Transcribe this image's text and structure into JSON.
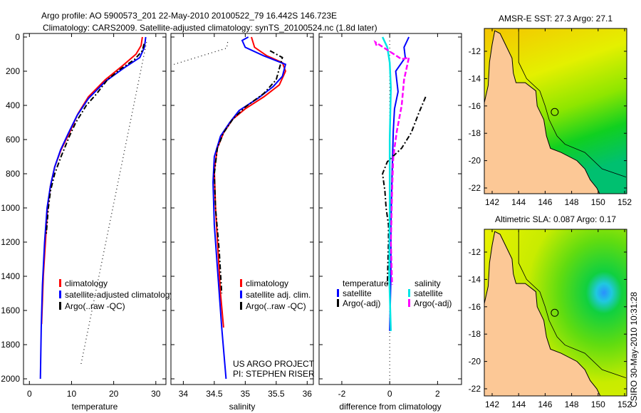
{
  "title_line1": "Argo profile: AO 5900573_201 22-May-2010 20100522_79 16.442S 146.723E",
  "title_line2": "Climatology: CARS2009. Satellite-adjusted climatology: synTS_20100524.nc (1.8d later)",
  "footer_stamp": "CSIRO 30-May-2010 10:31:28",
  "colors": {
    "climatology": "#ff0000",
    "satellite": "#0000ff",
    "argo": "#000000",
    "sal_satellite": "#00e5e5",
    "sal_argo": "#ff00ff",
    "land": "#fcc896"
  },
  "chart_data": [
    {
      "type": "line",
      "id": "temp",
      "xlabel": "temperature",
      "ylabel": "",
      "xlim": [
        -1.4,
        32.4
      ],
      "ylim": [
        2030,
        0
      ],
      "xticks": [
        0,
        10,
        20,
        30
      ],
      "yticks": [
        0,
        200,
        400,
        600,
        800,
        1000,
        1200,
        1400,
        1600,
        1800,
        2000
      ],
      "legend": [
        "climatology",
        "satellite-adjusted climatology",
        "Argo(..raw -QC)"
      ],
      "series": [
        {
          "name": "climatology",
          "style": "red",
          "points": [
            [
              26.8,
              0
            ],
            [
              26.5,
              50
            ],
            [
              25.3,
              100
            ],
            [
              22,
              170
            ],
            [
              18,
              250
            ],
            [
              14,
              350
            ],
            [
              11.5,
              450
            ],
            [
              9.5,
              560
            ],
            [
              7.5,
              660
            ],
            [
              6,
              760
            ],
            [
              5,
              870
            ],
            [
              4.3,
              1000
            ],
            [
              3.8,
              1200
            ],
            [
              3.3,
              1400
            ],
            [
              2.9,
              1680
            ]
          ]
        },
        {
          "name": "satellite-adjusted climatology",
          "style": "blue",
          "points": [
            [
              27.6,
              0
            ],
            [
              27.3,
              60
            ],
            [
              26.2,
              120
            ],
            [
              22.5,
              180
            ],
            [
              18,
              260
            ],
            [
              14,
              360
            ],
            [
              11.3,
              460
            ],
            [
              9.3,
              560
            ],
            [
              7.4,
              660
            ],
            [
              6,
              760
            ],
            [
              5,
              870
            ],
            [
              4.2,
              1000
            ],
            [
              3.6,
              1200
            ],
            [
              3.1,
              1450
            ],
            [
              2.8,
              1700
            ],
            [
              2.6,
              2000
            ]
          ]
        },
        {
          "name": "Argo(..raw -QC)",
          "style": "argo",
          "points": [
            [
              27.2,
              40
            ],
            [
              26.8,
              80
            ],
            [
              25,
              130
            ],
            [
              21.5,
              190
            ],
            [
              18.5,
              250
            ],
            [
              16,
              330
            ],
            [
              13.5,
              400
            ],
            [
              11,
              500
            ],
            [
              9.5,
              580
            ],
            [
              7.5,
              700
            ],
            [
              6,
              800
            ],
            [
              5,
              900
            ],
            [
              4.5,
              1000
            ],
            [
              4,
              1150
            ]
          ]
        },
        {
          "name": "Argo raw",
          "style": "dotted",
          "points": [
            [
              27.8,
              30
            ],
            [
              12.2,
              1920
            ]
          ]
        }
      ]
    },
    {
      "type": "line",
      "id": "sal",
      "xlabel": "salinity",
      "xlim": [
        33.8,
        36.1
      ],
      "ylim": [
        2030,
        0
      ],
      "xticks": [
        34,
        34.5,
        35,
        35.5,
        36
      ],
      "xtick_labels": [
        "34",
        "34.5",
        "35",
        "35.5",
        "36"
      ],
      "legend": [
        "climatology",
        "satellite adj. clim.",
        "Argo(..raw -QC)"
      ],
      "annotation": [
        "US ARGO PROJECT",
        "PI: STEPHEN RISER"
      ],
      "series": [
        {
          "name": "climatology",
          "style": "red",
          "points": [
            [
              35.1,
              0
            ],
            [
              35.15,
              60
            ],
            [
              35.35,
              110
            ],
            [
              35.6,
              150
            ],
            [
              35.65,
              200
            ],
            [
              35.55,
              280
            ],
            [
              35.3,
              350
            ],
            [
              35.0,
              420
            ],
            [
              34.8,
              480
            ],
            [
              34.65,
              560
            ],
            [
              34.55,
              650
            ],
            [
              34.5,
              780
            ],
            [
              34.52,
              1000
            ],
            [
              34.56,
              1250
            ],
            [
              34.6,
              1500
            ],
            [
              34.65,
              1700
            ]
          ]
        },
        {
          "name": "satellite adj. clim.",
          "style": "blue",
          "points": [
            [
              35.05,
              0
            ],
            [
              34.95,
              20
            ],
            [
              35.0,
              60
            ],
            [
              35.3,
              110
            ],
            [
              35.65,
              160
            ],
            [
              35.6,
              230
            ],
            [
              35.45,
              290
            ],
            [
              35.2,
              360
            ],
            [
              34.9,
              430
            ],
            [
              34.75,
              500
            ],
            [
              34.6,
              580
            ],
            [
              34.5,
              700
            ],
            [
              34.48,
              850
            ],
            [
              34.5,
              1100
            ],
            [
              34.56,
              1400
            ],
            [
              34.62,
              1700
            ],
            [
              34.69,
              2000
            ]
          ]
        },
        {
          "name": "Argo(..raw -QC)",
          "style": "argo",
          "points": [
            [
              35.4,
              80
            ],
            [
              35.6,
              120
            ],
            [
              35.5,
              250
            ],
            [
              35.3,
              330
            ],
            [
              35.0,
              410
            ],
            [
              34.8,
              480
            ],
            [
              34.65,
              560
            ],
            [
              34.55,
              650
            ],
            [
              34.5,
              800
            ],
            [
              34.52,
              1000
            ],
            [
              34.58,
              1250
            ],
            [
              34.62,
              1500
            ]
          ]
        },
        {
          "name": "Argo raw",
          "style": "dotted",
          "points": [
            [
              33.85,
              160
            ],
            [
              34.7,
              65
            ],
            [
              34.72,
              20
            ]
          ]
        }
      ]
    },
    {
      "type": "line",
      "id": "diff",
      "xlabel": "difference from climatology",
      "xlim": [
        -2.95,
        3.0
      ],
      "ylim": [
        2030,
        0
      ],
      "xticks": [
        -2,
        0,
        2
      ],
      "legend_temp_title": "temperature",
      "legend_sal_title": "salinity",
      "legend": [
        "satellite",
        "Argo(-adj)",
        "satellite",
        "Argo(-adj)"
      ],
      "series": [
        {
          "name": "temperature satellite",
          "style": "blue",
          "points": [
            [
              0.8,
              0
            ],
            [
              0.6,
              60
            ],
            [
              0.65,
              120
            ],
            [
              0.25,
              200
            ],
            [
              0.35,
              320
            ],
            [
              0.2,
              420
            ],
            [
              0.15,
              550
            ],
            [
              0.1,
              800
            ],
            [
              0.05,
              1100
            ],
            [
              0.05,
              1400
            ],
            [
              0.0,
              1720
            ]
          ]
        },
        {
          "name": "temperature Argo(-adj)",
          "style": "argo",
          "points": [
            [
              1.5,
              350
            ],
            [
              1.2,
              450
            ],
            [
              0.9,
              560
            ],
            [
              0.5,
              650
            ],
            [
              -0.1,
              730
            ],
            [
              -0.3,
              800
            ],
            [
              -0.2,
              900
            ],
            [
              -0.15,
              1000
            ],
            [
              -0.05,
              1100
            ],
            [
              -0.05,
              1200
            ],
            [
              -0.1,
              1450
            ]
          ]
        },
        {
          "name": "salinity satellite",
          "style": "cyan",
          "points": [
            [
              -0.3,
              0
            ],
            [
              -0.1,
              60
            ],
            [
              0.0,
              150
            ],
            [
              0.05,
              300
            ],
            [
              0.0,
              600
            ],
            [
              0.0,
              1000
            ],
            [
              -0.02,
              1400
            ],
            [
              0.05,
              1720
            ]
          ]
        },
        {
          "name": "salinity Argo(-adj)",
          "style": "magenta",
          "points": [
            [
              -0.55,
              50
            ],
            [
              -0.6,
              30
            ],
            [
              0.5,
              130
            ],
            [
              0.8,
              120
            ],
            [
              0.6,
              250
            ],
            [
              0.5,
              400
            ],
            [
              0.3,
              550
            ],
            [
              0.15,
              700
            ],
            [
              0.1,
              900
            ],
            [
              0.05,
              1200
            ],
            [
              0.1,
              1450
            ]
          ]
        }
      ]
    }
  ],
  "maps": [
    {
      "title": "AMSR-E SST: 27.3 Argo: 27.1",
      "kind": "sst"
    },
    {
      "title": "Altimetric SLA: 0.087 Argo: 0.17",
      "kind": "sla"
    }
  ],
  "map_xticks": [
    142,
    144,
    146,
    148,
    150,
    152
  ],
  "map_yticks": [
    -12,
    -14,
    -16,
    -18,
    -20,
    -22
  ]
}
